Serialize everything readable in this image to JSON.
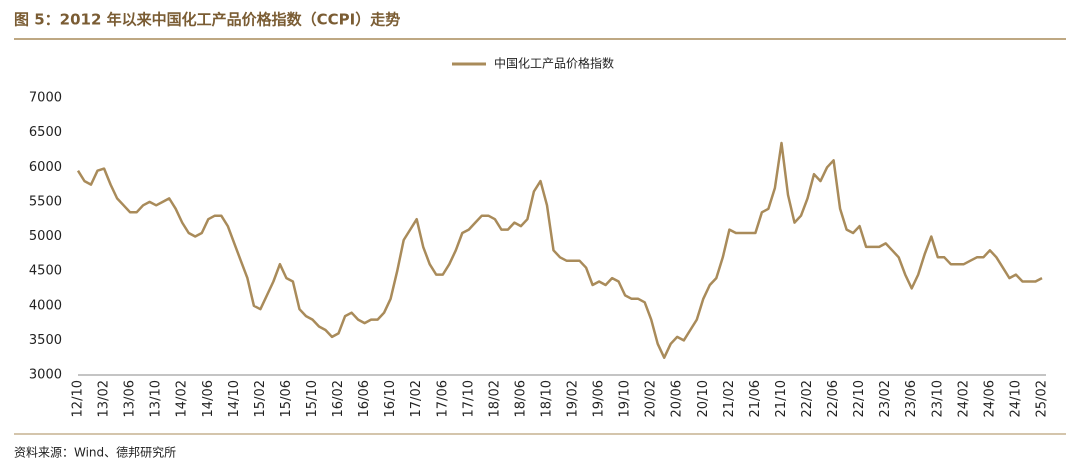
{
  "chart_data": {
    "type": "line",
    "title": "图 5：2012 年以来中国化工产品价格指数（CCPI）走势",
    "source": "资料来源：Wind、德邦研究所",
    "categories": [
      "12/10",
      null,
      null,
      null,
      "13/02",
      null,
      null,
      null,
      "13/06",
      null,
      null,
      null,
      "13/10",
      null,
      null,
      null,
      "14/02",
      null,
      null,
      null,
      "14/06",
      null,
      null,
      null,
      "14/10",
      null,
      null,
      null,
      "15/02",
      null,
      null,
      null,
      "15/06",
      null,
      null,
      null,
      "15/10",
      null,
      null,
      null,
      "16/02",
      null,
      null,
      null,
      "16/06",
      null,
      null,
      null,
      "16/10",
      null,
      null,
      null,
      "17/02",
      null,
      null,
      null,
      "17/06",
      null,
      null,
      null,
      "17/10",
      null,
      null,
      null,
      "18/02",
      null,
      null,
      null,
      "18/06",
      null,
      null,
      null,
      "18/10",
      null,
      null,
      null,
      "19/02",
      null,
      null,
      null,
      "19/06",
      null,
      null,
      null,
      "19/10",
      null,
      null,
      null,
      "20/02",
      null,
      null,
      null,
      "20/06",
      null,
      null,
      null,
      "20/10",
      null,
      null,
      null,
      "21/02",
      null,
      null,
      null,
      "21/06",
      null,
      null,
      null,
      "21/10",
      null,
      null,
      null,
      "22/02",
      null,
      null,
      null,
      "22/06",
      null,
      null,
      null,
      "22/10",
      null,
      null,
      null,
      "23/02",
      null,
      null,
      null,
      "23/06",
      null,
      null,
      null,
      "23/10",
      null,
      null,
      null,
      "24/02",
      null,
      null,
      null,
      "24/06",
      null,
      null,
      null,
      "24/10",
      null,
      null,
      null,
      "25/02"
    ],
    "series": [
      {
        "name": "中国化工产品价格指数",
        "color": "#a98b5a",
        "values": [
          5950,
          5800,
          5750,
          5950,
          5980,
          5750,
          5550,
          5450,
          5350,
          5350,
          5450,
          5500,
          5450,
          5500,
          5550,
          5400,
          5200,
          5050,
          5000,
          5050,
          5250,
          5300,
          5300,
          5150,
          4900,
          4650,
          4400,
          4000,
          3950,
          4150,
          4350,
          4600,
          4400,
          4350,
          3950,
          3850,
          3800,
          3700,
          3650,
          3550,
          3600,
          3850,
          3900,
          3800,
          3750,
          3800,
          3800,
          3900,
          4100,
          4500,
          4950,
          5100,
          5250,
          4850,
          4600,
          4450,
          4450,
          4600,
          4800,
          5050,
          5100,
          5200,
          5300,
          5300,
          5250,
          5100,
          5100,
          5200,
          5150,
          5250,
          5650,
          5800,
          5450,
          4800,
          4700,
          4650,
          4650,
          4650,
          4550,
          4300,
          4350,
          4300,
          4400,
          4350,
          4150,
          4100,
          4100,
          4050,
          3800,
          3450,
          3250,
          3450,
          3550,
          3500,
          3650,
          3800,
          4100,
          4300,
          4400,
          4700,
          5100,
          5050,
          5050,
          5050,
          5050,
          5350,
          5400,
          5700,
          6350,
          5600,
          5200,
          5300,
          5550,
          5900,
          5800,
          6000,
          6100,
          5400,
          5100,
          5050,
          5150,
          4850,
          4850,
          4850,
          4900,
          4800,
          4700,
          4450,
          4250,
          4450,
          4750,
          5000,
          4700,
          4700,
          4600,
          4600,
          4600,
          4650,
          4700,
          4700,
          4800,
          4700,
          4550,
          4400,
          4450,
          4350,
          4350,
          4350,
          4400
        ]
      }
    ],
    "ylim": [
      3000,
      7000
    ],
    "yticks": [
      3000,
      3500,
      4000,
      4500,
      5000,
      5500,
      6000,
      6500,
      7000
    ],
    "grid": false
  }
}
